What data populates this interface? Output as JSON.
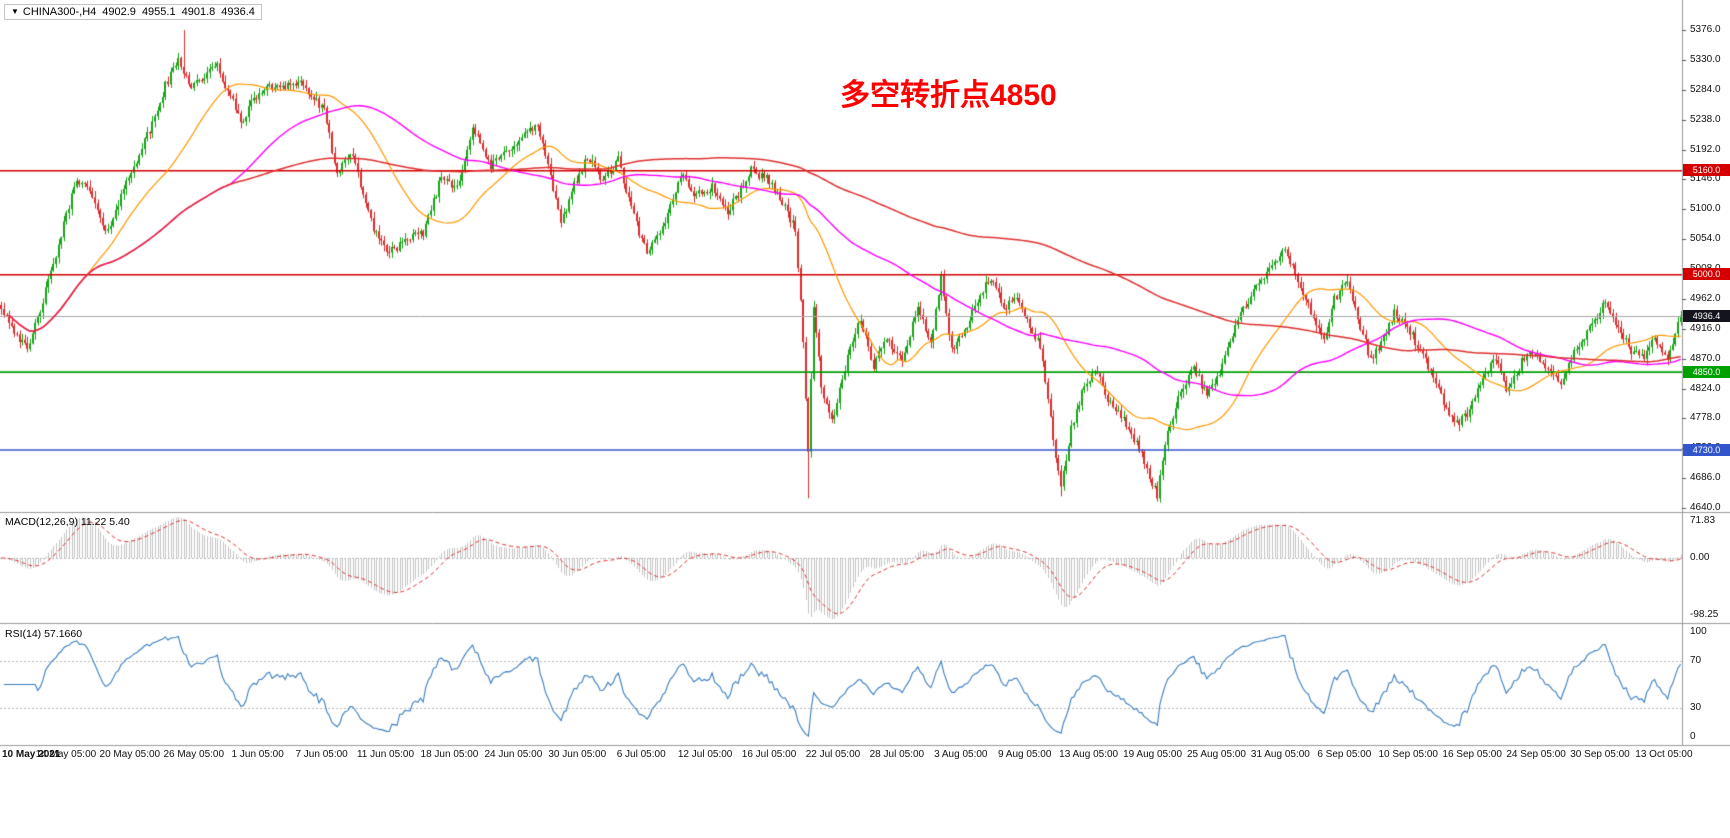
{
  "header": {
    "symbol_tf": "CHINA300-,H4",
    "open": "4902.9",
    "high": "4955.1",
    "low": "4901.8",
    "close": "4936.4"
  },
  "annotation": {
    "text": "多空转折点4850",
    "color": "#FF0000"
  },
  "colors": {
    "background": "#FFFFFF",
    "candle_up": "#17A317",
    "candle_down": "#DD2C2C",
    "ma_fast": "#FF9900",
    "ma_mid": "#FF00FF",
    "ma_slow": "#E03030",
    "current_price_line": "#A8A8A8",
    "current_price_badge": "#14141E",
    "macd_histogram": "#C4C4C4",
    "macd_signal": "#E03030",
    "rsi_line": "#3C7EC0",
    "panel_border": "#9A9A9A",
    "level_dotted": "#BBBBBB",
    "axis_text": "#111111"
  },
  "chart_data": {
    "type": "candlestick",
    "symbol": "CHINA300-",
    "timeframe": "H4",
    "ohlc_current": {
      "open": 4902.9,
      "high": 4955.1,
      "low": 4901.8,
      "close": 4936.4
    },
    "bars_total": 646,
    "price_axis": {
      "max": 5376.0,
      "min": 4640.0,
      "ticks": [
        "5376.0",
        "5330.0",
        "5284.0",
        "5238.0",
        "5192.0",
        "5146.0",
        "5100.0",
        "5054.0",
        "5008.0",
        "4962.0",
        "4916.0",
        "4870.0",
        "4824.0",
        "4778.0",
        "4732.0",
        "4686.0",
        "4640.0"
      ]
    },
    "time_axis": [
      "10 May 2021",
      "14 May 05:00",
      "20 May 05:00",
      "26 May 05:00",
      "1 Jun 05:00",
      "7 Jun 05:00",
      "11 Jun 05:00",
      "18 Jun 05:00",
      "24 Jun 05:00",
      "30 Jun 05:00",
      "6 Jul 05:00",
      "12 Jul 05:00",
      "16 Jul 05:00",
      "22 Jul 05:00",
      "28 Jul 05:00",
      "3 Aug 05:00",
      "9 Aug 05:00",
      "13 Aug 05:00",
      "19 Aug 05:00",
      "25 Aug 05:00",
      "31 Aug 05:00",
      "6 Sep 05:00",
      "10 Sep 05:00",
      "16 Sep 05:00",
      "24 Sep 05:00",
      "30 Sep 05:00",
      "13 Oct 05:00"
    ],
    "hlines": [
      {
        "price": 5160.0,
        "label": "5160.0",
        "color": "#D40000"
      },
      {
        "price": 5000.0,
        "label": "5000.0",
        "color": "#D40000"
      },
      {
        "price": 4850.0,
        "label": "4850.0",
        "color": "#00A000"
      },
      {
        "price": 4730.0,
        "label": "4730.0",
        "color": "#3355CC"
      }
    ],
    "current_price": {
      "value": 4936.4,
      "label": "4936.4"
    },
    "moving_averages": [
      {
        "period": 34,
        "color": "#FF9900",
        "width": 1.2
      },
      {
        "period": 89,
        "color": "#FF00FF",
        "width": 1.4
      },
      {
        "period": 233,
        "color": "#E03030",
        "width": 1.5
      }
    ],
    "price_path_anchors": [
      [
        0,
        4950
      ],
      [
        10,
        4880
      ],
      [
        19,
        5000
      ],
      [
        29,
        5150
      ],
      [
        35,
        5120
      ],
      [
        40,
        5060
      ],
      [
        50,
        5160
      ],
      [
        58,
        5230
      ],
      [
        63,
        5290
      ],
      [
        68,
        5330
      ],
      [
        73,
        5290
      ],
      [
        83,
        5320
      ],
      [
        92,
        5235
      ],
      [
        99,
        5280
      ],
      [
        105,
        5290
      ],
      [
        115,
        5295
      ],
      [
        124,
        5250
      ],
      [
        129,
        5155
      ],
      [
        135,
        5185
      ],
      [
        142,
        5080
      ],
      [
        148,
        5035
      ],
      [
        156,
        5050
      ],
      [
        162,
        5065
      ],
      [
        169,
        5150
      ],
      [
        175,
        5135
      ],
      [
        181,
        5225
      ],
      [
        188,
        5165
      ],
      [
        198,
        5205
      ],
      [
        206,
        5230
      ],
      [
        211,
        5150
      ],
      [
        215,
        5075
      ],
      [
        220,
        5140
      ],
      [
        225,
        5180
      ],
      [
        231,
        5145
      ],
      [
        237,
        5175
      ],
      [
        242,
        5100
      ],
      [
        248,
        5030
      ],
      [
        254,
        5070
      ],
      [
        261,
        5155
      ],
      [
        267,
        5120
      ],
      [
        273,
        5135
      ],
      [
        279,
        5095
      ],
      [
        288,
        5160
      ],
      [
        295,
        5145
      ],
      [
        300,
        5110
      ],
      [
        305,
        5070
      ],
      [
        308,
        4900
      ],
      [
        310,
        4720
      ],
      [
        312,
        4950
      ],
      [
        315,
        4830
      ],
      [
        319,
        4770
      ],
      [
        325,
        4870
      ],
      [
        330,
        4930
      ],
      [
        335,
        4860
      ],
      [
        340,
        4900
      ],
      [
        346,
        4870
      ],
      [
        352,
        4950
      ],
      [
        357,
        4890
      ],
      [
        361,
        5000
      ],
      [
        365,
        4880
      ],
      [
        370,
        4910
      ],
      [
        375,
        4960
      ],
      [
        380,
        4995
      ],
      [
        385,
        4945
      ],
      [
        389,
        4965
      ],
      [
        394,
        4930
      ],
      [
        399,
        4890
      ],
      [
        404,
        4750
      ],
      [
        407,
        4670
      ],
      [
        411,
        4760
      ],
      [
        416,
        4830
      ],
      [
        421,
        4850
      ],
      [
        426,
        4800
      ],
      [
        432,
        4770
      ],
      [
        437,
        4730
      ],
      [
        440,
        4700
      ],
      [
        444,
        4660
      ],
      [
        448,
        4760
      ],
      [
        453,
        4820
      ],
      [
        458,
        4860
      ],
      [
        463,
        4810
      ],
      [
        468,
        4850
      ],
      [
        474,
        4920
      ],
      [
        479,
        4960
      ],
      [
        484,
        4990
      ],
      [
        488,
        5010
      ],
      [
        493,
        5040
      ],
      [
        498,
        4990
      ],
      [
        503,
        4940
      ],
      [
        508,
        4900
      ],
      [
        512,
        4960
      ],
      [
        517,
        4990
      ],
      [
        521,
        4930
      ],
      [
        526,
        4870
      ],
      [
        531,
        4900
      ],
      [
        535,
        4940
      ],
      [
        540,
        4920
      ],
      [
        545,
        4880
      ],
      [
        550,
        4840
      ],
      [
        554,
        4800
      ],
      [
        559,
        4770
      ],
      [
        564,
        4790
      ],
      [
        569,
        4840
      ],
      [
        574,
        4870
      ],
      [
        578,
        4820
      ],
      [
        581,
        4840
      ],
      [
        586,
        4880
      ],
      [
        591,
        4870
      ],
      [
        595,
        4850
      ],
      [
        599,
        4830
      ],
      [
        604,
        4880
      ],
      [
        608,
        4900
      ],
      [
        612,
        4930
      ],
      [
        616,
        4960
      ],
      [
        621,
        4920
      ],
      [
        626,
        4880
      ],
      [
        631,
        4870
      ],
      [
        635,
        4900
      ],
      [
        640,
        4870
      ],
      [
        643,
        4910
      ],
      [
        645,
        4936.4
      ]
    ],
    "spikes": [
      [
        70,
        5376
      ],
      [
        310,
        4655
      ],
      [
        407,
        4658
      ],
      [
        444,
        4650
      ]
    ],
    "macd": {
      "label": "MACD(12,26,9) 11.22 5.40",
      "params": [
        12,
        26,
        9
      ],
      "value": "11.22",
      "signal": "5.40",
      "axis_ticks": [
        "71.83",
        "0.00",
        "-98.25"
      ]
    },
    "rsi": {
      "label": "RSI(14) 57.1660",
      "period": 14,
      "value": "57.1660",
      "levels": [
        70,
        30
      ],
      "axis_ticks": [
        "100",
        "70",
        "30",
        "0"
      ],
      "axis_values": [
        100,
        70,
        30,
        0
      ]
    }
  }
}
